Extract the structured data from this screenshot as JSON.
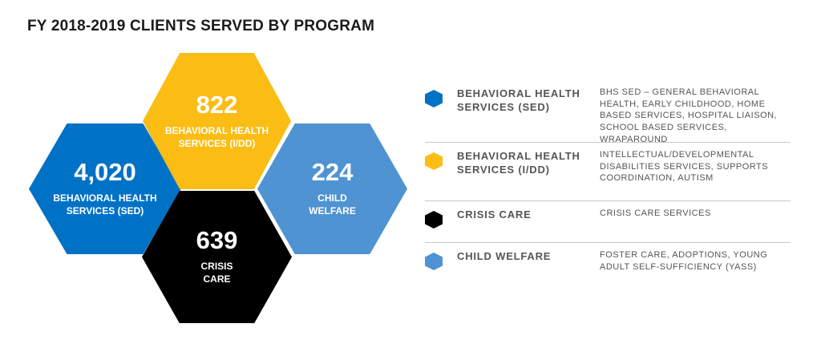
{
  "title": "FY 2018-2019 CLIENTS SERVED BY PROGRAM",
  "colors": {
    "sed": "#0072c6",
    "idd": "#fbbc13",
    "crisis": "#000000",
    "child_welfare": "#4f93d2"
  },
  "programs": {
    "sed": {
      "count": "4,020",
      "hex_label": "BEHAVIORAL HEALTH SERVICES (SED)",
      "legend_label": "BEHAVIORAL HEALTH SERVICES (SED)",
      "description": "BHS SED – GENERAL BEHAVIORAL HEALTH, EARLY CHILDHOOD, HOME BASED SERVICES, HOSPITAL LIAISON, SCHOOL BASED SERVICES, WRAPAROUND"
    },
    "idd": {
      "count": "822",
      "hex_label": "BEHAVIORAL HEALTH SERVICES (I/DD)",
      "legend_label": "BEHAVIORAL HEALTH SERVICES (I/DD)",
      "description": "INTELLECTUAL/DEVELOPMENTAL DISABILITIES SERVICES, SUPPORTS COORDINATION, AUTISM"
    },
    "crisis": {
      "count": "639",
      "hex_label": "CRISIS CARE",
      "legend_label": "CRISIS CARE",
      "description": "CRISIS CARE SERVICES"
    },
    "child_welfare": {
      "count": "224",
      "hex_label": "CHILD WELFARE",
      "legend_label": "CHILD WELFARE",
      "description": "FOSTER CARE, ADOPTIONS, YOUNG ADULT SELF-SUFFICIENCY (YASS)"
    }
  }
}
